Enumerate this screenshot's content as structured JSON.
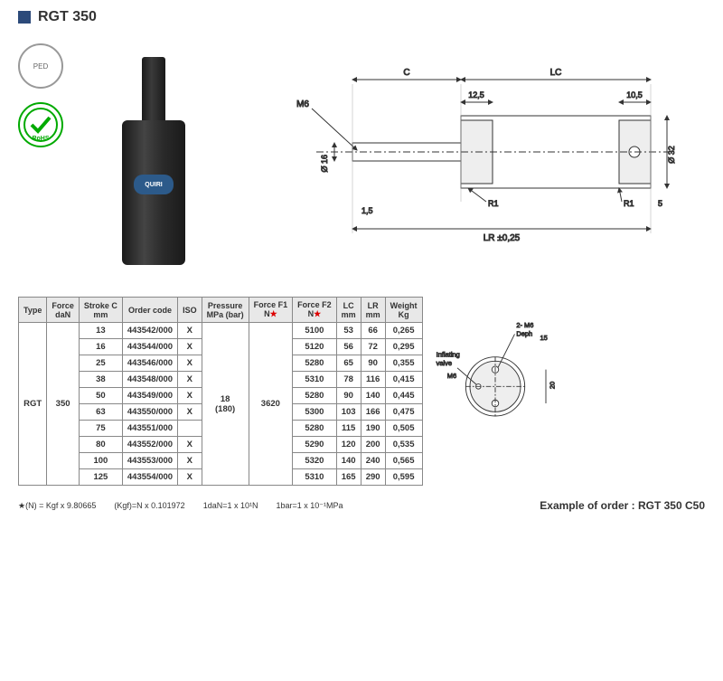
{
  "header": {
    "title": "RGT 350"
  },
  "brand": "QUIRI",
  "diagram": {
    "dim_c": "C",
    "dim_lc": "LC",
    "m6": "M6",
    "val_125": "12,5",
    "val_105": "10,5",
    "dia_16": "Ø 16",
    "dia_32": "Ø 32",
    "val_15": "1,5",
    "r1": "R1",
    "val_5": "5",
    "lr": "LR ±0,25"
  },
  "table": {
    "columns": [
      "Type",
      "Force\ndaN",
      "Stroke C\nmm",
      "Order code",
      "ISO",
      "Pressure\nMPa (bar)",
      "Force F1\nN★",
      "Force F2\nN★",
      "LC\nmm",
      "LR\nmm",
      "Weight\nKg"
    ],
    "type": "RGT",
    "force": "350",
    "pressure": "18\n(180)",
    "f1": "3620",
    "rows": [
      {
        "stroke": "13",
        "code": "443542/000",
        "iso": "X",
        "f2": "5100",
        "lc": "53",
        "lr": "66",
        "wt": "0,265"
      },
      {
        "stroke": "16",
        "code": "443544/000",
        "iso": "X",
        "f2": "5120",
        "lc": "56",
        "lr": "72",
        "wt": "0,295"
      },
      {
        "stroke": "25",
        "code": "443546/000",
        "iso": "X",
        "f2": "5280",
        "lc": "65",
        "lr": "90",
        "wt": "0,355"
      },
      {
        "stroke": "38",
        "code": "443548/000",
        "iso": "X",
        "f2": "5310",
        "lc": "78",
        "lr": "116",
        "wt": "0,415"
      },
      {
        "stroke": "50",
        "code": "443549/000",
        "iso": "X",
        "f2": "5280",
        "lc": "90",
        "lr": "140",
        "wt": "0,445"
      },
      {
        "stroke": "63",
        "code": "443550/000",
        "iso": "X",
        "f2": "5300",
        "lc": "103",
        "lr": "166",
        "wt": "0,475"
      },
      {
        "stroke": "75",
        "code": "443551/000",
        "iso": "",
        "f2": "5280",
        "lc": "115",
        "lr": "190",
        "wt": "0,505"
      },
      {
        "stroke": "80",
        "code": "443552/000",
        "iso": "X",
        "f2": "5290",
        "lc": "120",
        "lr": "200",
        "wt": "0,535"
      },
      {
        "stroke": "100",
        "code": "443553/000",
        "iso": "X",
        "f2": "5320",
        "lc": "140",
        "lr": "240",
        "wt": "0,565"
      },
      {
        "stroke": "125",
        "code": "443554/000",
        "iso": "X",
        "f2": "5310",
        "lc": "165",
        "lr": "290",
        "wt": "0,595"
      }
    ]
  },
  "end_diagram": {
    "inflating": "Inflating\nvalve",
    "m6": "M6",
    "holes": "2- M6\nDeph",
    "val_15": "15",
    "val_20": "20"
  },
  "footer": {
    "notes": [
      "★(N) = Kgf x 9.80665",
      "(Kgf)=N x 0.101972",
      "1daN=1 x 10¹N",
      "1bar=1 x 10⁻¹MPa"
    ],
    "example": "Example of order : RGT 350 C50"
  }
}
